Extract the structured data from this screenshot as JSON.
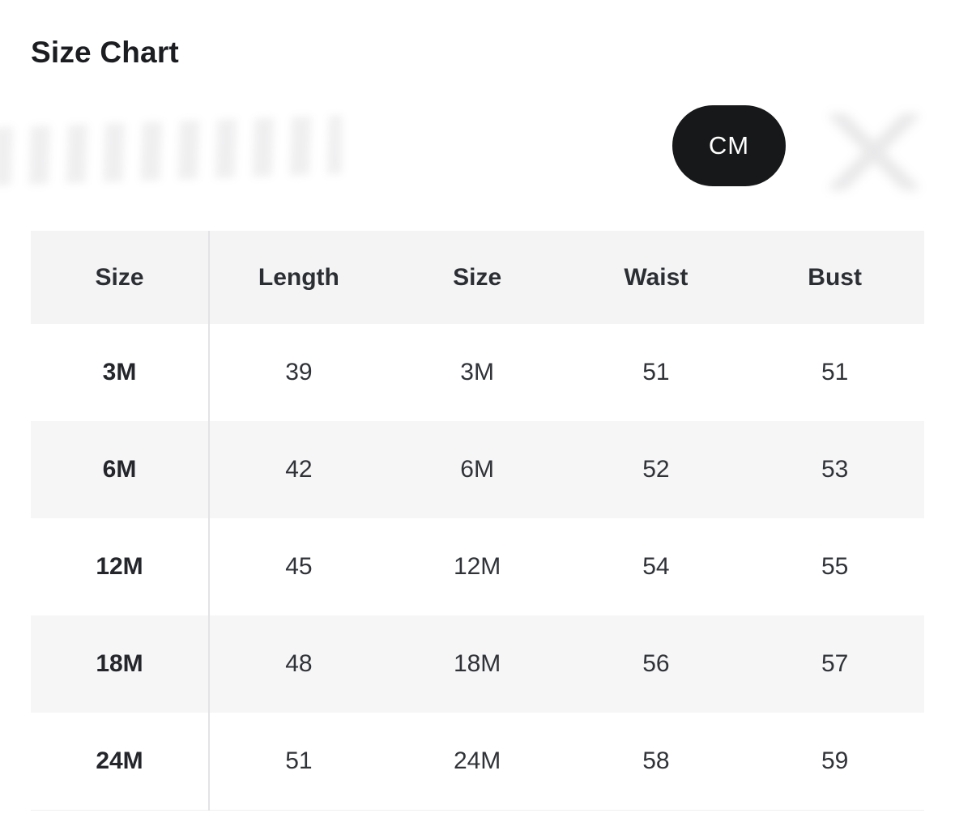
{
  "header": {
    "title": "Size Chart"
  },
  "unit_toggle": {
    "selected": "CM"
  },
  "size_table": {
    "columns": [
      "Size",
      "Length",
      "Size",
      "Waist",
      "Bust"
    ],
    "rows": [
      [
        "3M",
        "39",
        "3M",
        "51",
        "51"
      ],
      [
        "6M",
        "42",
        "6M",
        "52",
        "53"
      ],
      [
        "12M",
        "45",
        "12M",
        "54",
        "55"
      ],
      [
        "18M",
        "48",
        "18M",
        "56",
        "57"
      ],
      [
        "24M",
        "51",
        "24M",
        "58",
        "59"
      ]
    ]
  },
  "colors": {
    "toggle_bg": "#17181a",
    "toggle_text": "#ffffff",
    "header_row_bg": "#f4f4f5",
    "stripe_row_bg": "#f6f6f7",
    "divider": "#e3e3e6",
    "text": "#2f3237"
  }
}
